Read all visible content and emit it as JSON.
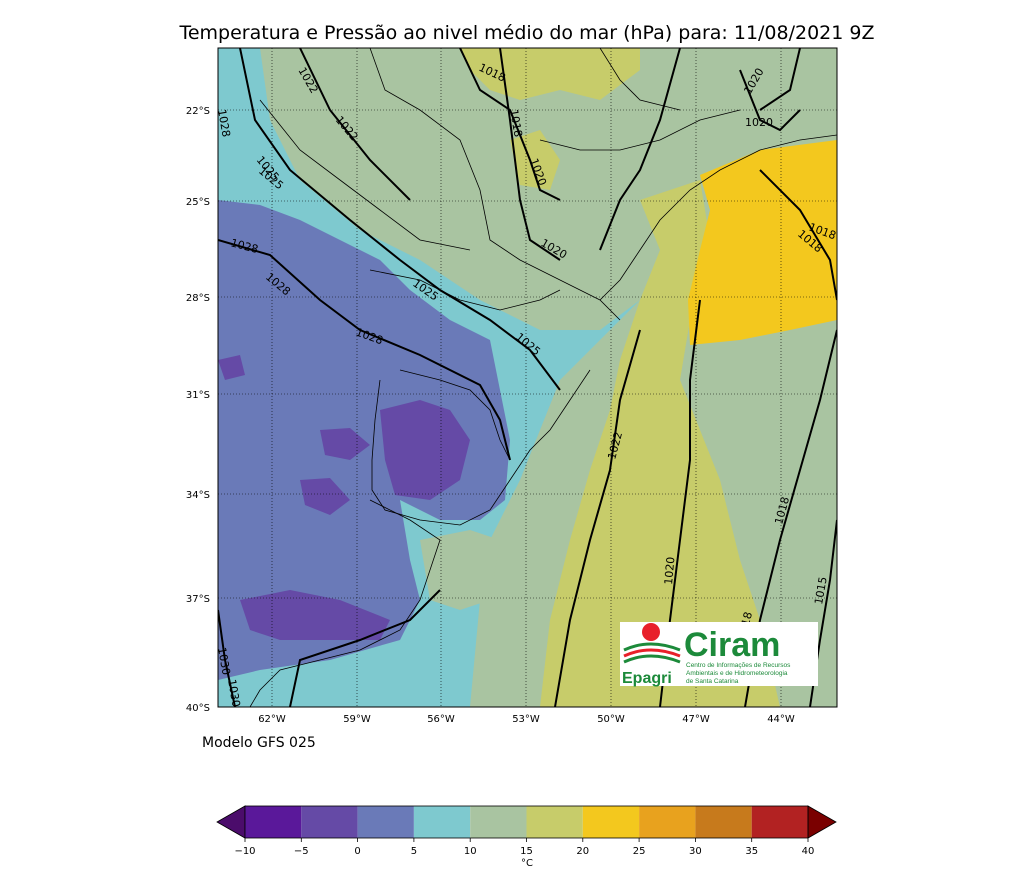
{
  "title": "Temperatura e Pressão ao nivel médio do mar (hPa) para: 11/08/2021 9Z",
  "model_label": "Modelo GFS 025",
  "lat_labels": [
    "22°S",
    "25°S",
    "28°S",
    "31°S",
    "34°S",
    "37°S",
    "40°S"
  ],
  "lon_labels": [
    "62°W",
    "59°W",
    "56°W",
    "53°W",
    "50°W",
    "47°W",
    "44°W"
  ],
  "isobar_labels": [
    "1028",
    "1025",
    "1022",
    "1022",
    "1018",
    "1018",
    "1020",
    "1020",
    "1020",
    "1028",
    "1028",
    "1028",
    "1025",
    "1025",
    "1020",
    "1018",
    "1018",
    "1022",
    "1020",
    "1018",
    "1018",
    "1015",
    "1030",
    "1030",
    "1025"
  ],
  "colorbar": {
    "unit": "°C",
    "ticks": [
      "−10",
      "−5",
      "0",
      "5",
      "10",
      "15",
      "20",
      "25",
      "30",
      "35",
      "40"
    ],
    "colors": [
      "#4b0c6b",
      "#5a189a",
      "#654aa6",
      "#6a7ab8",
      "#7ec9cf",
      "#a9c4a1",
      "#c7cc6a",
      "#f3c81e",
      "#e8a21e",
      "#c77a1c",
      "#b22222",
      "#7a0000"
    ]
  },
  "logo": {
    "brand_left": "Epagri",
    "brand_right": "Ciram",
    "subtitle_1": "Centro de Informações de Recursos",
    "subtitle_2": "Ambientais e de Hidrometeorologia",
    "subtitle_3": "de Santa Catarina"
  }
}
